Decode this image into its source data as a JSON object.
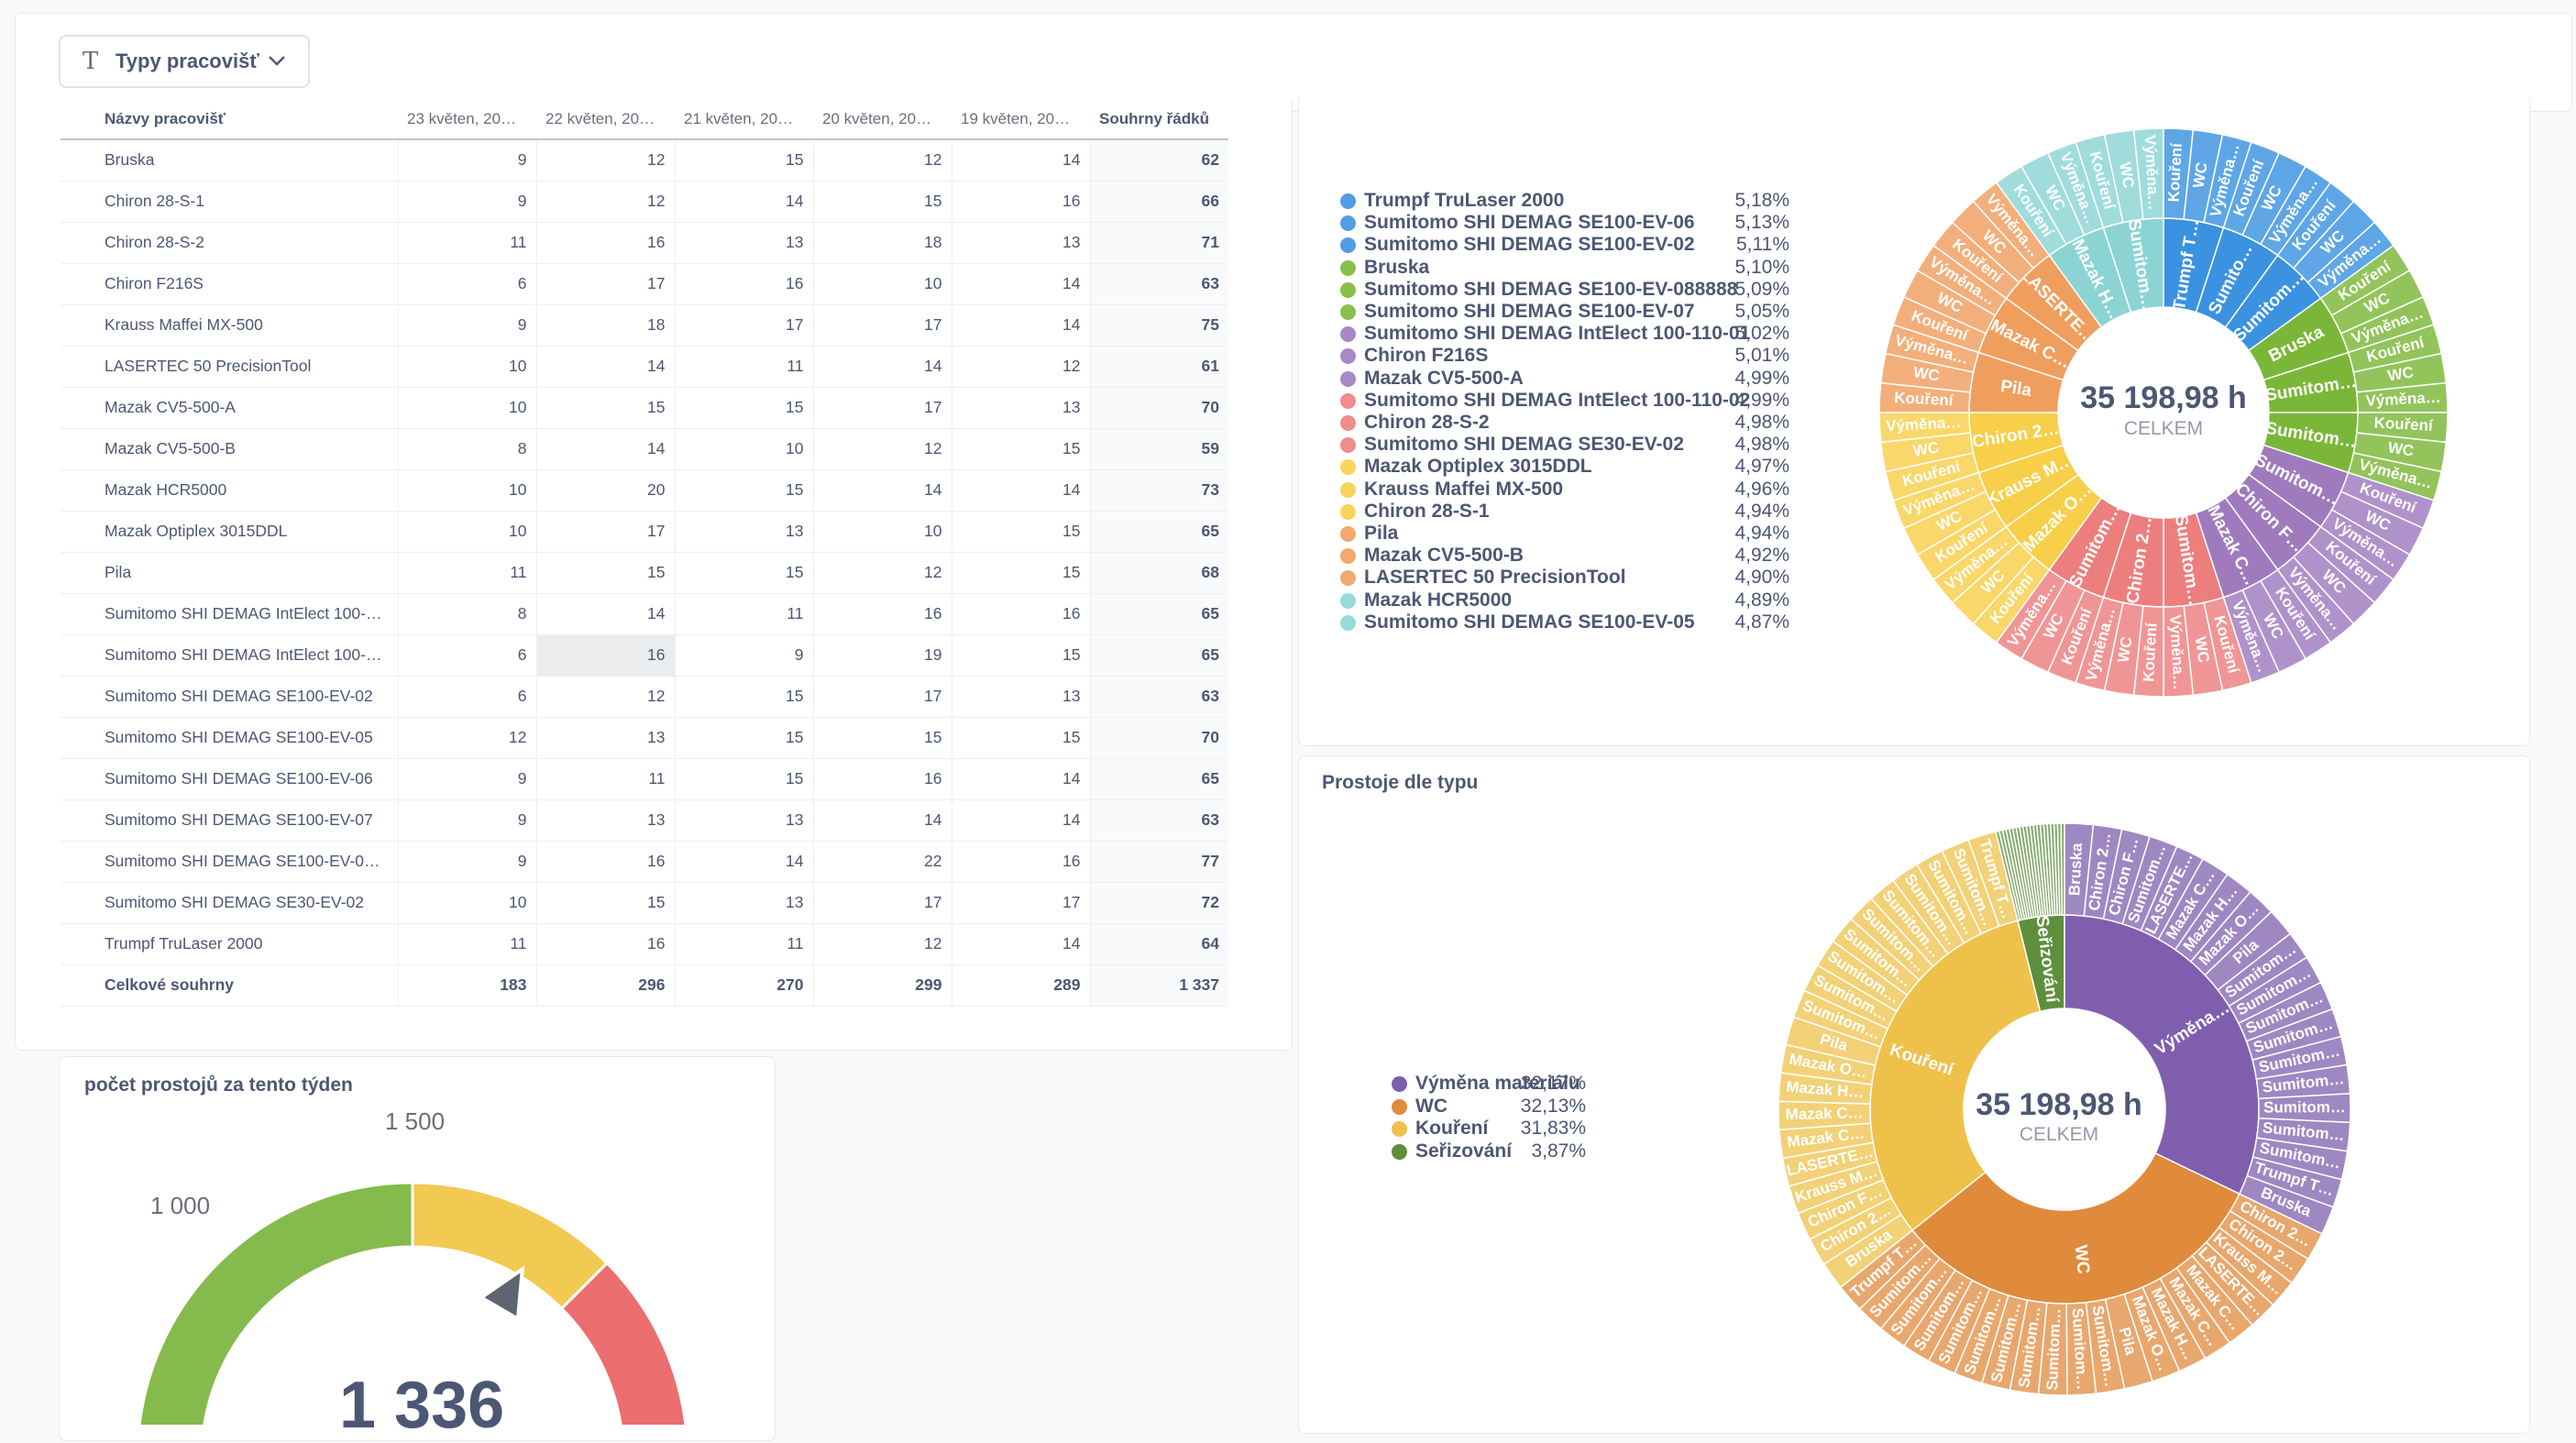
{
  "filter": {
    "label": "Typy pracovišť"
  },
  "pivot": {
    "headers": [
      "Názvy pracovišť",
      "23 květen, 20…",
      "22 květen, 20…",
      "21 květen, 20…",
      "20 květen, 20…",
      "19 květen, 20…",
      "Souhrny řádků"
    ],
    "rows": [
      [
        "Bruska",
        "9",
        "12",
        "15",
        "12",
        "14",
        "62"
      ],
      [
        "Chiron 28-S-1",
        "9",
        "12",
        "14",
        "15",
        "16",
        "66"
      ],
      [
        "Chiron 28-S-2",
        "11",
        "16",
        "13",
        "18",
        "13",
        "71"
      ],
      [
        "Chiron F216S",
        "6",
        "17",
        "16",
        "10",
        "14",
        "63"
      ],
      [
        "Krauss Maffei MX-500",
        "9",
        "18",
        "17",
        "17",
        "14",
        "75"
      ],
      [
        "LASERTEC 50 PrecisionTool",
        "10",
        "14",
        "11",
        "14",
        "12",
        "61"
      ],
      [
        "Mazak CV5-500-A",
        "10",
        "15",
        "15",
        "17",
        "13",
        "70"
      ],
      [
        "Mazak CV5-500-B",
        "8",
        "14",
        "10",
        "12",
        "15",
        "59"
      ],
      [
        "Mazak HCR5000",
        "10",
        "20",
        "15",
        "14",
        "14",
        "73"
      ],
      [
        "Mazak Optiplex 3015DDL",
        "10",
        "17",
        "13",
        "10",
        "15",
        "65"
      ],
      [
        "Pila",
        "11",
        "15",
        "15",
        "12",
        "15",
        "68"
      ],
      [
        "Sumitomo SHI DEMAG IntElect 100-110…",
        "8",
        "14",
        "11",
        "16",
        "16",
        "65"
      ],
      [
        "Sumitomo SHI DEMAG IntElect 100-110…",
        "6",
        "16",
        "9",
        "19",
        "15",
        "65"
      ],
      [
        "Sumitomo SHI DEMAG SE100-EV-02",
        "6",
        "12",
        "15",
        "17",
        "13",
        "63"
      ],
      [
        "Sumitomo SHI DEMAG SE100-EV-05",
        "12",
        "13",
        "15",
        "15",
        "15",
        "70"
      ],
      [
        "Sumitomo SHI DEMAG SE100-EV-06",
        "9",
        "11",
        "15",
        "16",
        "14",
        "65"
      ],
      [
        "Sumitomo SHI DEMAG SE100-EV-07",
        "9",
        "13",
        "13",
        "14",
        "14",
        "63"
      ],
      [
        "Sumitomo SHI DEMAG SE100-EV-088888",
        "9",
        "16",
        "14",
        "22",
        "16",
        "77"
      ],
      [
        "Sumitomo SHI DEMAG SE30-EV-02",
        "10",
        "15",
        "13",
        "17",
        "17",
        "72"
      ],
      [
        "Trumpf TruLaser 2000",
        "11",
        "16",
        "11",
        "12",
        "14",
        "64"
      ]
    ],
    "total": [
      "Celkové souhrny",
      "183",
      "296",
      "270",
      "299",
      "289",
      "1 337"
    ]
  },
  "colors": {
    "blue": "#509ee3",
    "green": "#88bf4d",
    "purple": "#a989c5",
    "red": "#ef8c8c",
    "yellow": "#f9d45c",
    "orange": "#f2a86f",
    "teal": "#98d9d9"
  },
  "sunburst1": {
    "center_value": "35 198,98 h",
    "center_label": "CELKEM",
    "legend": [
      {
        "name": "Trumpf TruLaser 2000",
        "pct": "5,18%",
        "color": "#509ee3"
      },
      {
        "name": "Sumitomo SHI DEMAG SE100-EV-06",
        "pct": "5,13%",
        "color": "#509ee3"
      },
      {
        "name": "Sumitomo SHI DEMAG SE100-EV-02",
        "pct": "5,11%",
        "color": "#509ee3"
      },
      {
        "name": "Bruska",
        "pct": "5,10%",
        "color": "#88bf4d"
      },
      {
        "name": "Sumitomo SHI DEMAG SE100-EV-088888",
        "pct": "5,09%",
        "color": "#88bf4d"
      },
      {
        "name": "Sumitomo SHI DEMAG SE100-EV-07",
        "pct": "5,05%",
        "color": "#88bf4d"
      },
      {
        "name": "Sumitomo SHI DEMAG IntElect 100-110-01",
        "pct": "5,02%",
        "color": "#a989c5"
      },
      {
        "name": "Chiron F216S",
        "pct": "5,01%",
        "color": "#a989c5"
      },
      {
        "name": "Mazak CV5-500-A",
        "pct": "4,99%",
        "color": "#a989c5"
      },
      {
        "name": "Sumitomo SHI DEMAG IntElect 100-110-02",
        "pct": "4,99%",
        "color": "#ef8c8c"
      },
      {
        "name": "Chiron 28-S-2",
        "pct": "4,98%",
        "color": "#ef8c8c"
      },
      {
        "name": "Sumitomo SHI DEMAG SE30-EV-02",
        "pct": "4,98%",
        "color": "#ef8c8c"
      },
      {
        "name": "Mazak Optiplex 3015DDL",
        "pct": "4,97%",
        "color": "#f9d45c"
      },
      {
        "name": "Krauss Maffei MX-500",
        "pct": "4,96%",
        "color": "#f9d45c"
      },
      {
        "name": "Chiron 28-S-1",
        "pct": "4,94%",
        "color": "#f9d45c"
      },
      {
        "name": "Pila",
        "pct": "4,94%",
        "color": "#f2a86f"
      },
      {
        "name": "Mazak CV5-500-B",
        "pct": "4,92%",
        "color": "#f2a86f"
      },
      {
        "name": "LASERTEC 50 PrecisionTool",
        "pct": "4,90%",
        "color": "#f2a86f"
      },
      {
        "name": "Mazak HCR5000",
        "pct": "4,89%",
        "color": "#98d9d9"
      },
      {
        "name": "Sumitomo SHI DEMAG SE100-EV-05",
        "pct": "4,87%",
        "color": "#98d9d9"
      }
    ],
    "inner_labels": [
      "Trumpf T…",
      "Sumito…",
      "Sumitom…",
      "Bruska",
      "Sumitom…",
      "Sumitom…",
      "Sumitom…",
      "Chiron F…",
      "Mazak C…",
      "Sumitom…",
      "Chiron 2…",
      "Sumitom…",
      "Mazak O…",
      "Krauss M…",
      "Chiron 2…",
      "Pila",
      "Mazak C…",
      "LASERTE…",
      "Mazak H…",
      "Sumitom…"
    ],
    "outer_labels": [
      "Kouření",
      "WC",
      "Výměna…"
    ]
  },
  "sunburst2": {
    "title": "Prostoje dle typu",
    "center_value": "35 198,98 h",
    "center_label": "CELKEM",
    "legend": [
      {
        "name": "Výměna materiálu",
        "pct": "32,17%",
        "color": "#7f5fad"
      },
      {
        "name": "WC",
        "pct": "32,13%",
        "color": "#e08a3c"
      },
      {
        "name": "Kouření",
        "pct": "31,83%",
        "color": "#eec14a"
      },
      {
        "name": "Seřizování",
        "pct": "3,87%",
        "color": "#5d8f3c"
      }
    ],
    "inner_labels": [
      "Výměna…",
      "WC",
      "Kouření",
      "Seřizování"
    ],
    "outer_vymena": [
      "Bruska",
      "Chiron 2…",
      "Chiron F…",
      "Sumitom…",
      "LASERTE…",
      "Mazak C…",
      "Mazak H…",
      "Mazak O…",
      "Pila",
      "Sumitom…",
      "Sumitom…",
      "Sumitom…",
      "Sumitom…",
      "Sumitom…",
      "Sumitom…",
      "Sumitom…",
      "Sumitom…",
      "Sumitom…",
      "Trumpf T…",
      "Bruska"
    ],
    "outer_wc": [
      "Chiron 2…",
      "Chiron 2…",
      "Krauss M…",
      "LASERTE…",
      "Mazak C…",
      "Mazak C…",
      "Mazak H…",
      "Mazak O…",
      "Pila",
      "Sumitom…",
      "Sumitom…",
      "Sumitom…",
      "Sumitom…",
      "Sumitom…",
      "Sumitom…",
      "Sumitom…",
      "Sumitom…",
      "Sumitom…",
      "Sumitom…",
      "Trumpf T…"
    ],
    "outer_koureni": [
      "Bruska",
      "Chiron 2…",
      "Chiron F…",
      "Krauss M…",
      "LASERTE…",
      "Mazak C…",
      "Mazak C…",
      "Mazak H…",
      "Mazak O…",
      "Pila",
      "Sumitom…",
      "Sumitom…",
      "Sumitom…",
      "Sumitom…",
      "Sumitom…",
      "Sumitom…",
      "Sumitom…",
      "Sumitom…",
      "Sumitom…",
      "Trumpf T…"
    ]
  },
  "gauge": {
    "title": "počet prostojů za tento týden",
    "value": 1336,
    "value_text": "1 336",
    "min": 0,
    "max": 2000,
    "ticks": [
      {
        "value": 1000,
        "label": "1 000"
      },
      {
        "value": 1500,
        "label": "1 500"
      }
    ],
    "segments": [
      {
        "from": 0,
        "to": 1000,
        "color": "#84bb4c"
      },
      {
        "from": 1000,
        "to": 1500,
        "color": "#f2ca52"
      },
      {
        "from": 1500,
        "to": 2000,
        "color": "#ed6e6e"
      }
    ]
  }
}
